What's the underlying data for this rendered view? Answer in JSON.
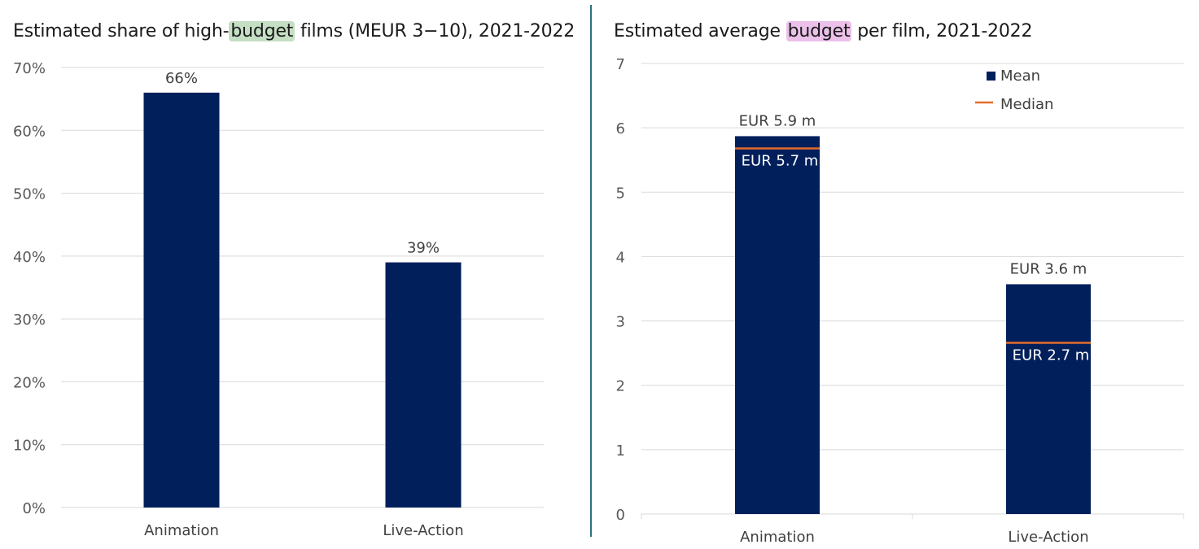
{
  "charts": {
    "left": {
      "title_pre": "Estimated share of high-",
      "title_hl": "budget",
      "title_post": " films (MEUR 3−10), 2021-2022"
    },
    "right": {
      "title_pre": "Estimated average ",
      "title_hl": "budget",
      "title_post": " per film, 2021-2022",
      "legend": {
        "mean": "Mean",
        "median": "Median"
      }
    }
  },
  "colors": {
    "bar": "#001f5b",
    "median": "#e36c2a",
    "grid": "#d9d9d9",
    "divider": "#2a6f83",
    "hl_green": "#c5dfc4",
    "hl_pink": "#ebc1ea"
  },
  "chart_data": [
    {
      "type": "bar",
      "title": "Estimated share of high-budget films (MEUR 3−10), 2021-2022",
      "categories": [
        "Animation",
        "Live-Action"
      ],
      "values": [
        66,
        39
      ],
      "data_labels": [
        "66%",
        "39%"
      ],
      "ylim": [
        0,
        70
      ],
      "yticks": [
        0,
        10,
        20,
        30,
        40,
        50,
        60,
        70
      ],
      "ytick_labels": [
        "0%",
        "10%",
        "20%",
        "30%",
        "40%",
        "50%",
        "60%",
        "70%"
      ],
      "grid": true
    },
    {
      "type": "bar",
      "title": "Estimated average budget per film, 2021-2022",
      "categories": [
        "Animation",
        "Live-Action"
      ],
      "series": [
        {
          "name": "Mean",
          "values": [
            5.87,
            3.57
          ],
          "labels": [
            "EUR 5.9 m",
            "EUR 3.6 m"
          ]
        },
        {
          "name": "Median",
          "values": [
            5.68,
            2.66
          ],
          "labels": [
            "EUR 5.7 m",
            "EUR 2.7 m"
          ]
        }
      ],
      "ylim": [
        0,
        7
      ],
      "yticks": [
        0,
        1,
        2,
        3,
        4,
        5,
        6,
        7
      ],
      "ytick_labels": [
        "0",
        "1",
        "2",
        "3",
        "4",
        "5",
        "6",
        "7"
      ],
      "legend": "top-right",
      "grid": true
    }
  ]
}
